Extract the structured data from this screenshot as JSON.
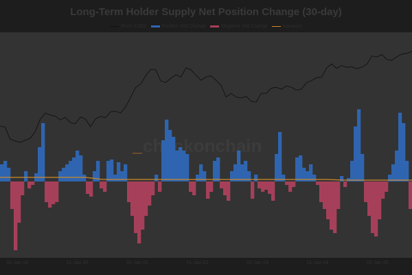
{
  "chart_data": {
    "type": "bar",
    "title": "Long-Term Holder Supply Net Position Change (30-day)",
    "watermark": "checkonchain",
    "legend": [
      {
        "name": "Price (USD)",
        "color": "#111111"
      },
      {
        "name": "Positive 30d Change",
        "color": "#2f65b0"
      },
      {
        "name": "Negative 30d Change",
        "color": "#a6405a"
      },
      {
        "name": "Issuance",
        "color": "#d08a2a"
      }
    ],
    "xlabel": "",
    "ylabel": "",
    "x_ticks": [
      "01-Jan-19",
      "01-Jan-20",
      "01-Jan-21",
      "01-Jan-22",
      "01-Jan-23",
      "01-Jan-24",
      "01-Jan-25"
    ],
    "x_range": [
      "Sep-2018",
      "Jul-2025"
    ],
    "net_change_ylim": [
      -111,
      217
    ],
    "net_change": [
      25,
      30,
      20,
      -40,
      -100,
      -60,
      -20,
      15,
      -10,
      -5,
      12,
      50,
      85,
      -30,
      -38,
      -33,
      -30,
      15,
      20,
      25,
      30,
      35,
      45,
      38,
      10,
      -18,
      -22,
      15,
      30,
      -10,
      -15,
      30,
      32,
      10,
      28,
      15,
      25,
      -30,
      -50,
      -75,
      -90,
      -70,
      -50,
      -35,
      -20,
      10,
      -15,
      60,
      90,
      75,
      65,
      45,
      50,
      45,
      40,
      -15,
      -20,
      10,
      25,
      15,
      -25,
      -15,
      30,
      35,
      -10,
      -20,
      -28,
      15,
      25,
      45,
      25,
      30,
      15,
      -25,
      10,
      -10,
      -15,
      -12,
      -18,
      -28,
      40,
      72,
      10,
      -5,
      -15,
      -8,
      35,
      38,
      20,
      15,
      25,
      10,
      -5,
      -30,
      -40,
      -55,
      -70,
      -75,
      -40,
      8,
      -8,
      5,
      30,
      80,
      105,
      40,
      -30,
      -50,
      -75,
      -80,
      -55,
      -25,
      -15,
      10,
      25,
      45,
      100,
      85,
      30,
      -40
    ],
    "issuance": [
      6,
      6,
      6,
      6,
      6,
      6,
      3,
      3,
      3,
      3,
      3,
      3,
      3,
      3,
      3,
      3,
      3,
      3,
      3,
      3,
      2,
      2,
      2,
      2,
      2
    ],
    "price_scale": "log",
    "price_ylim": [
      42,
      239000
    ],
    "price_usd_monthly": [
      6600,
      6300,
      4000,
      3700,
      3500,
      3800,
      4100,
      5300,
      8500,
      10800,
      10000,
      9600,
      8300,
      9200,
      7500,
      7200,
      9300,
      8600,
      6400,
      8600,
      9500,
      9100,
      11300,
      11600,
      10800,
      13800,
      19700,
      29000,
      33000,
      45000,
      58000,
      57000,
      37000,
      35000,
      41000,
      47000,
      43000,
      61000,
      57000,
      46000,
      38000,
      43000,
      45000,
      38000,
      31000,
      20000,
      23000,
      20000,
      19400,
      20500,
      17000,
      16500,
      23000,
      23000,
      28000,
      29000,
      27000,
      30500,
      29000,
      26000,
      27000,
      34500,
      37700,
      42000,
      42500,
      61000,
      71000,
      60000,
      67000,
      62500,
      64000,
      59000,
      63000,
      70000,
      96000,
      93000,
      102000,
      84000,
      82000,
      94000,
      104000,
      107000,
      115000
    ],
    "grid": false
  }
}
